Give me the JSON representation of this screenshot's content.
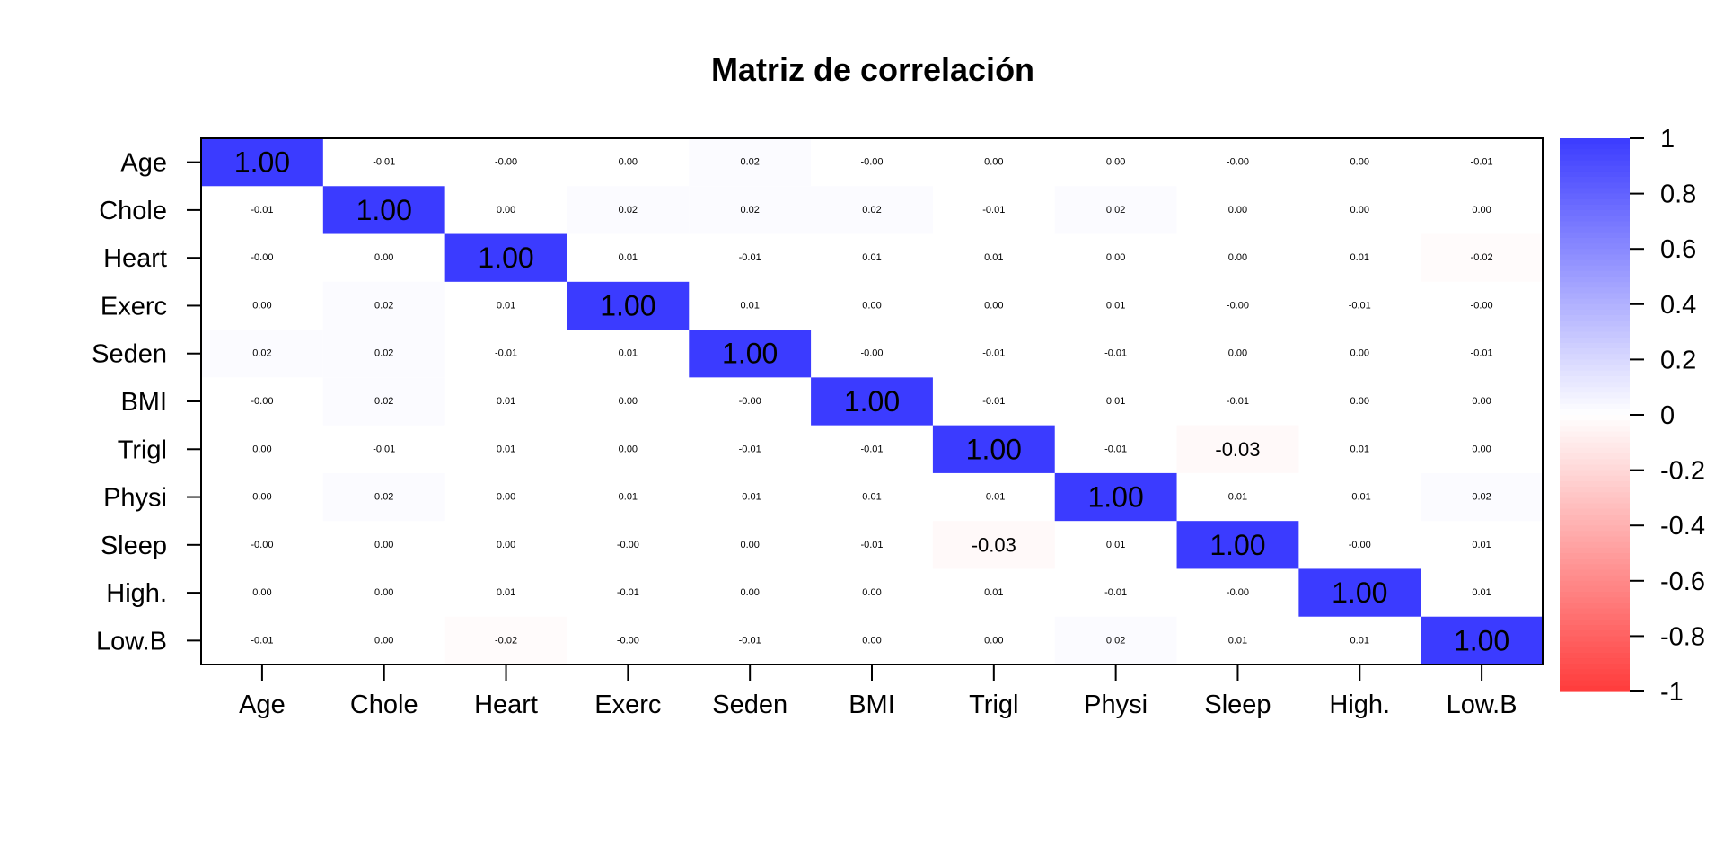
{
  "chart_data": {
    "type": "heatmap",
    "title": "Matriz de correlación",
    "variables": [
      "Age",
      "Chole",
      "Heart",
      "Exerc",
      "Seden",
      "BMI",
      "Trigl",
      "Physi",
      "Sleep",
      "High.",
      "Low.B"
    ],
    "matrix": [
      [
        "1.00",
        "-0.01",
        "-0.00",
        "0.00",
        "0.02",
        "-0.00",
        "0.00",
        "0.00",
        "-0.00",
        "0.00",
        "-0.01"
      ],
      [
        "-0.01",
        "1.00",
        "0.00",
        "0.02",
        "0.02",
        "0.02",
        "-0.01",
        "0.02",
        "0.00",
        "0.00",
        "0.00"
      ],
      [
        "-0.00",
        "0.00",
        "1.00",
        "0.01",
        "-0.01",
        "0.01",
        "0.01",
        "0.00",
        "0.00",
        "0.01",
        "-0.02"
      ],
      [
        "0.00",
        "0.02",
        "0.01",
        "1.00",
        "0.01",
        "0.00",
        "0.00",
        "0.01",
        "-0.00",
        "-0.01",
        "-0.00"
      ],
      [
        "0.02",
        "0.02",
        "-0.01",
        "0.01",
        "1.00",
        "-0.00",
        "-0.01",
        "-0.01",
        "0.00",
        "0.00",
        "-0.01"
      ],
      [
        "-0.00",
        "0.02",
        "0.01",
        "0.00",
        "-0.00",
        "1.00",
        "-0.01",
        "0.01",
        "-0.01",
        "0.00",
        "0.00"
      ],
      [
        "0.00",
        "-0.01",
        "0.01",
        "0.00",
        "-0.01",
        "-0.01",
        "1.00",
        "-0.01",
        "-0.03",
        "0.01",
        "0.00"
      ],
      [
        "0.00",
        "0.02",
        "0.00",
        "0.01",
        "-0.01",
        "0.01",
        "-0.01",
        "1.00",
        "0.01",
        "-0.01",
        "0.02"
      ],
      [
        "-0.00",
        "0.00",
        "0.00",
        "-0.00",
        "0.00",
        "-0.01",
        "-0.03",
        "0.01",
        "1.00",
        "-0.00",
        "0.01"
      ],
      [
        "0.00",
        "0.00",
        "0.01",
        "-0.01",
        "0.00",
        "0.00",
        "0.01",
        "-0.01",
        "-0.00",
        "1.00",
        "0.01"
      ],
      [
        "-0.01",
        "0.00",
        "-0.02",
        "-0.00",
        "-0.01",
        "0.00",
        "0.00",
        "0.02",
        "0.01",
        "0.01",
        "1.00"
      ]
    ],
    "color_scale": {
      "min": -1,
      "max": 1,
      "negative_color": "#ff3b3b",
      "neutral_color": "#ffffff",
      "positive_color": "#3b3bff",
      "ticks": [
        "1",
        "0.8",
        "0.6",
        "0.4",
        "0.2",
        "0",
        "-0.2",
        "-0.4",
        "-0.6",
        "-0.8",
        "-1"
      ]
    },
    "grid": false,
    "legend": "right"
  }
}
